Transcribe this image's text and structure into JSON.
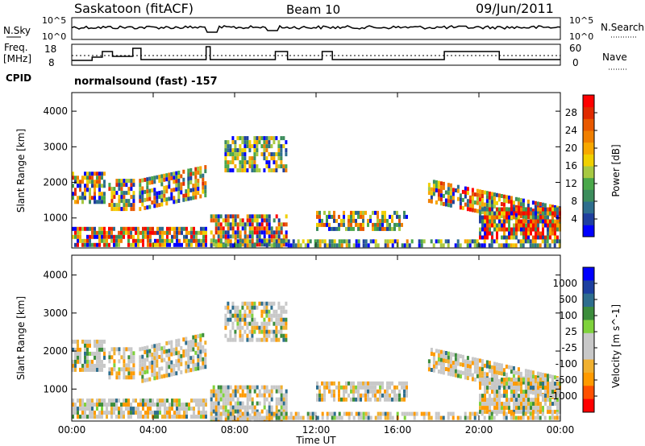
{
  "header": {
    "station": "Saskatoon (fitACF)",
    "beam": "Beam 10",
    "date": "09/Jun/2011"
  },
  "top_panels": {
    "nsky_label": "N.Sky",
    "nsky_ticks": [
      "10^5",
      "10^0"
    ],
    "nsearch_label": "N.Search",
    "nsearch_ticks": [
      "10^5",
      "10^0"
    ],
    "freq_label": "Freq.",
    "freq_unit": "[MHz]",
    "freq_ticks": [
      "18",
      "8"
    ],
    "nave_label": "Nave",
    "nave_ticks": [
      "60",
      "0"
    ],
    "cpid_label": "CPID",
    "cpid_value": "normalsound (fast) -157"
  },
  "colors": {
    "power": [
      "#0000ff",
      "#1f3f9f",
      "#2e6e8e",
      "#3c8d5c",
      "#4aa84a",
      "#a7c942",
      "#f0d000",
      "#f7a800",
      "#f07f00",
      "#e85800",
      "#e02a00",
      "#ff0000"
    ],
    "velocity": [
      "#ff0000",
      "#ff5000",
      "#ff9a00",
      "#f0b030",
      "#c8c8c8",
      "#c8c8c8",
      "#7fd23c",
      "#3c8d3c",
      "#2e6e8e",
      "#1c3fa0",
      "#0000ff"
    ]
  },
  "chart_data": [
    {
      "type": "heatmap",
      "name": "power",
      "ylabel": "Slant Range [km]",
      "yticks": [
        "1000",
        "2000",
        "3000",
        "4000"
      ],
      "ylim": [
        180,
        4500
      ],
      "xlim_hours": [
        0,
        24
      ],
      "colorbar_label": "Power [dB]",
      "colorbar_ticks": [
        "4",
        "8",
        "12",
        "16",
        "20",
        "24",
        "28"
      ],
      "colorbar_range": [
        0,
        30
      ]
    },
    {
      "type": "heatmap",
      "name": "velocity",
      "ylabel": "Slant Range [km]",
      "yticks": [
        "1000",
        "2000",
        "3000",
        "4000"
      ],
      "ylim": [
        180,
        4500
      ],
      "xlabel": "Time UT",
      "xticks": [
        "00:00",
        "04:00",
        "08:00",
        "12:00",
        "16:00",
        "20:00",
        "00:00"
      ],
      "xlim_hours": [
        0,
        24
      ],
      "colorbar_label": "Velocity [m s^-1]",
      "colorbar_ticks": [
        "1000",
        "500",
        "100",
        "25",
        "-25",
        "-100",
        "-500",
        "-1000"
      ]
    }
  ]
}
